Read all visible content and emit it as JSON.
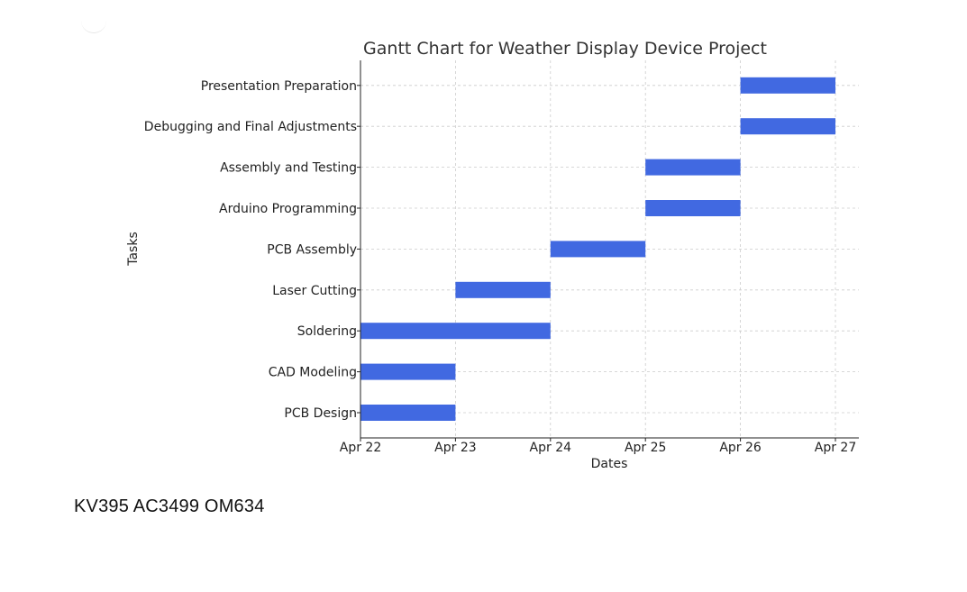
{
  "chart_data": {
    "type": "gantt",
    "title": "Gantt Chart for Weather Display Device Project",
    "xlabel": "Dates",
    "ylabel": "Tasks",
    "x_ticks": [
      "Apr 22",
      "Apr 23",
      "Apr 24",
      "Apr 25",
      "Apr 26",
      "Apr 27"
    ],
    "xlim": [
      "Apr 22",
      "Apr 27"
    ],
    "grid": true,
    "bar_color": "#4169e1",
    "tasks": [
      {
        "label": "PCB Design",
        "start": "Apr 22",
        "end": "Apr 23"
      },
      {
        "label": "CAD Modeling",
        "start": "Apr 22",
        "end": "Apr 23"
      },
      {
        "label": "Soldering",
        "start": "Apr 22",
        "end": "Apr 24"
      },
      {
        "label": "Laser Cutting",
        "start": "Apr 23",
        "end": "Apr 24"
      },
      {
        "label": "PCB Assembly",
        "start": "Apr 24",
        "end": "Apr 25"
      },
      {
        "label": "Arduino Programming",
        "start": "Apr 25",
        "end": "Apr 26"
      },
      {
        "label": "Assembly and Testing",
        "start": "Apr 25",
        "end": "Apr 26"
      },
      {
        "label": "Debugging and Final Adjustments",
        "start": "Apr 26",
        "end": "Apr 27"
      },
      {
        "label": "Presentation Preparation",
        "start": "Apr 26",
        "end": "Apr 27"
      }
    ]
  },
  "caption": "KV395 AC3499 OM634"
}
